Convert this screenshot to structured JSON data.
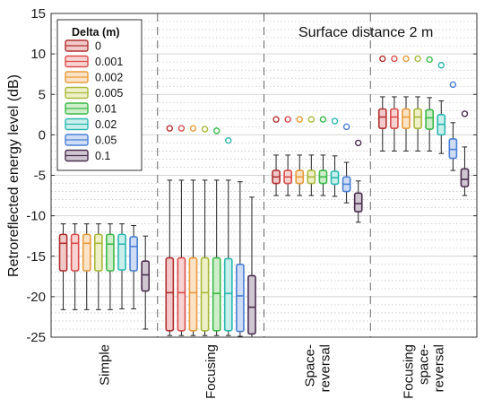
{
  "chart_data": {
    "type": "box",
    "ylabel": "Retroreflected energy level (dB)",
    "xlabel": "",
    "ylim": [
      -25,
      15
    ],
    "yticks": [
      -25,
      -20,
      -15,
      -10,
      -5,
      0,
      5,
      10,
      15
    ],
    "grid": true,
    "annotation": "Surface distance 2 m",
    "legend": {
      "title": "Delta (m)",
      "position": "top-left",
      "entries": [
        "0",
        "0.001",
        "0.002",
        "0.005",
        "0.01",
        "0.02",
        "0.05",
        "0.1"
      ]
    },
    "series_colors": [
      "#b03030",
      "#d94c4c",
      "#e89a3a",
      "#a9b83a",
      "#3cb84a",
      "#2bb8b0",
      "#4a7fd4",
      "#4a2e4e"
    ],
    "series_fills": [
      "#f2c9c9",
      "#f7d4d2",
      "#fbe3c7",
      "#eef0c8",
      "#cdeec9",
      "#c9efec",
      "#cfdcf6",
      "#cfc6d2"
    ],
    "groups": [
      {
        "label_lines": [
          "Simple"
        ],
        "boxes": [
          {
            "whislo": -21.6,
            "q1": -16.8,
            "med": -13.4,
            "q3": -12.3,
            "whishi": -11.0,
            "outlier": null
          },
          {
            "whislo": -21.6,
            "q1": -16.8,
            "med": -13.4,
            "q3": -12.3,
            "whishi": -11.0,
            "outlier": null
          },
          {
            "whislo": -21.6,
            "q1": -16.8,
            "med": -13.4,
            "q3": -12.3,
            "whishi": -11.0,
            "outlier": null
          },
          {
            "whislo": -21.6,
            "q1": -16.8,
            "med": -13.4,
            "q3": -12.3,
            "whishi": -11.0,
            "outlier": null
          },
          {
            "whislo": -21.6,
            "q1": -16.8,
            "med": -13.5,
            "q3": -12.3,
            "whishi": -11.0,
            "outlier": null
          },
          {
            "whislo": -21.5,
            "q1": -16.7,
            "med": -13.5,
            "q3": -12.3,
            "whishi": -11.0,
            "outlier": null
          },
          {
            "whislo": -21.5,
            "q1": -16.8,
            "med": -13.8,
            "q3": -12.6,
            "whishi": -11.2,
            "outlier": null
          },
          {
            "whislo": -24.0,
            "q1": -19.3,
            "med": -17.3,
            "q3": -15.6,
            "whishi": -12.5,
            "outlier": null
          }
        ]
      },
      {
        "label_lines": [
          "Focusing"
        ],
        "boxes": [
          {
            "whislo": -24.8,
            "q1": -24.2,
            "med": -19.5,
            "q3": -15.2,
            "whishi": -5.6,
            "outlier": 0.8
          },
          {
            "whislo": -24.8,
            "q1": -24.2,
            "med": -19.5,
            "q3": -15.2,
            "whishi": -5.6,
            "outlier": 0.8
          },
          {
            "whislo": -24.8,
            "q1": -24.2,
            "med": -19.5,
            "q3": -15.2,
            "whishi": -5.6,
            "outlier": 0.8
          },
          {
            "whislo": -24.8,
            "q1": -24.2,
            "med": -19.5,
            "q3": -15.2,
            "whishi": -5.6,
            "outlier": 0.7
          },
          {
            "whislo": -24.8,
            "q1": -24.2,
            "med": -19.6,
            "q3": -15.2,
            "whishi": -5.6,
            "outlier": 0.5
          },
          {
            "whislo": -24.8,
            "q1": -24.2,
            "med": -19.6,
            "q3": -15.3,
            "whishi": -5.6,
            "outlier": -0.7
          },
          {
            "whislo": -24.9,
            "q1": -24.3,
            "med": -19.9,
            "q3": -16.0,
            "whishi": -5.8,
            "outlier": null
          },
          {
            "whislo": -25.0,
            "q1": -24.6,
            "med": -21.3,
            "q3": -17.4,
            "whishi": -7.7,
            "outlier": null
          }
        ]
      },
      {
        "label_lines": [
          "Space-",
          "reversal"
        ],
        "boxes": [
          {
            "whislo": -7.5,
            "q1": -6.0,
            "med": -5.2,
            "q3": -4.4,
            "whishi": -2.5,
            "outlier": 1.9
          },
          {
            "whislo": -7.5,
            "q1": -6.0,
            "med": -5.2,
            "q3": -4.4,
            "whishi": -2.5,
            "outlier": 1.9
          },
          {
            "whislo": -7.5,
            "q1": -6.0,
            "med": -5.2,
            "q3": -4.4,
            "whishi": -2.5,
            "outlier": 1.9
          },
          {
            "whislo": -7.5,
            "q1": -6.0,
            "med": -5.2,
            "q3": -4.4,
            "whishi": -2.5,
            "outlier": 1.9
          },
          {
            "whislo": -7.5,
            "q1": -6.0,
            "med": -5.2,
            "q3": -4.4,
            "whishi": -2.5,
            "outlier": 1.9
          },
          {
            "whislo": -7.6,
            "q1": -6.1,
            "med": -5.3,
            "q3": -4.5,
            "whishi": -2.6,
            "outlier": 1.7
          },
          {
            "whislo": -8.4,
            "q1": -7.0,
            "med": -6.1,
            "q3": -5.2,
            "whishi": -3.4,
            "outlier": 1.0
          },
          {
            "whislo": -10.8,
            "q1": -9.5,
            "med": -8.5,
            "q3": -7.2,
            "whishi": -5.7,
            "outlier": -1.0
          }
        ]
      },
      {
        "label_lines": [
          "Focusing",
          "space-",
          "reversal"
        ],
        "boxes": [
          {
            "whislo": -2.0,
            "q1": 0.8,
            "med": 2.2,
            "q3": 3.2,
            "whishi": 4.7,
            "outlier": 9.4
          },
          {
            "whislo": -2.0,
            "q1": 0.8,
            "med": 2.2,
            "q3": 3.2,
            "whishi": 4.7,
            "outlier": 9.4
          },
          {
            "whislo": -2.0,
            "q1": 0.8,
            "med": 2.2,
            "q3": 3.2,
            "whishi": 4.7,
            "outlier": 9.4
          },
          {
            "whislo": -2.0,
            "q1": 0.8,
            "med": 2.2,
            "q3": 3.2,
            "whishi": 4.7,
            "outlier": 9.4
          },
          {
            "whislo": -2.0,
            "q1": 0.7,
            "med": 2.1,
            "q3": 3.1,
            "whishi": 4.6,
            "outlier": 9.3
          },
          {
            "whislo": -2.3,
            "q1": 0.0,
            "med": 1.3,
            "q3": 2.5,
            "whishi": 4.2,
            "outlier": 8.6
          },
          {
            "whislo": -4.4,
            "q1": -2.9,
            "med": -1.8,
            "q3": -0.5,
            "whishi": 1.5,
            "outlier": 6.2
          },
          {
            "whislo": -7.5,
            "q1": -6.4,
            "med": -5.5,
            "q3": -4.2,
            "whishi": -1.5,
            "outlier": 2.6
          }
        ]
      }
    ]
  }
}
